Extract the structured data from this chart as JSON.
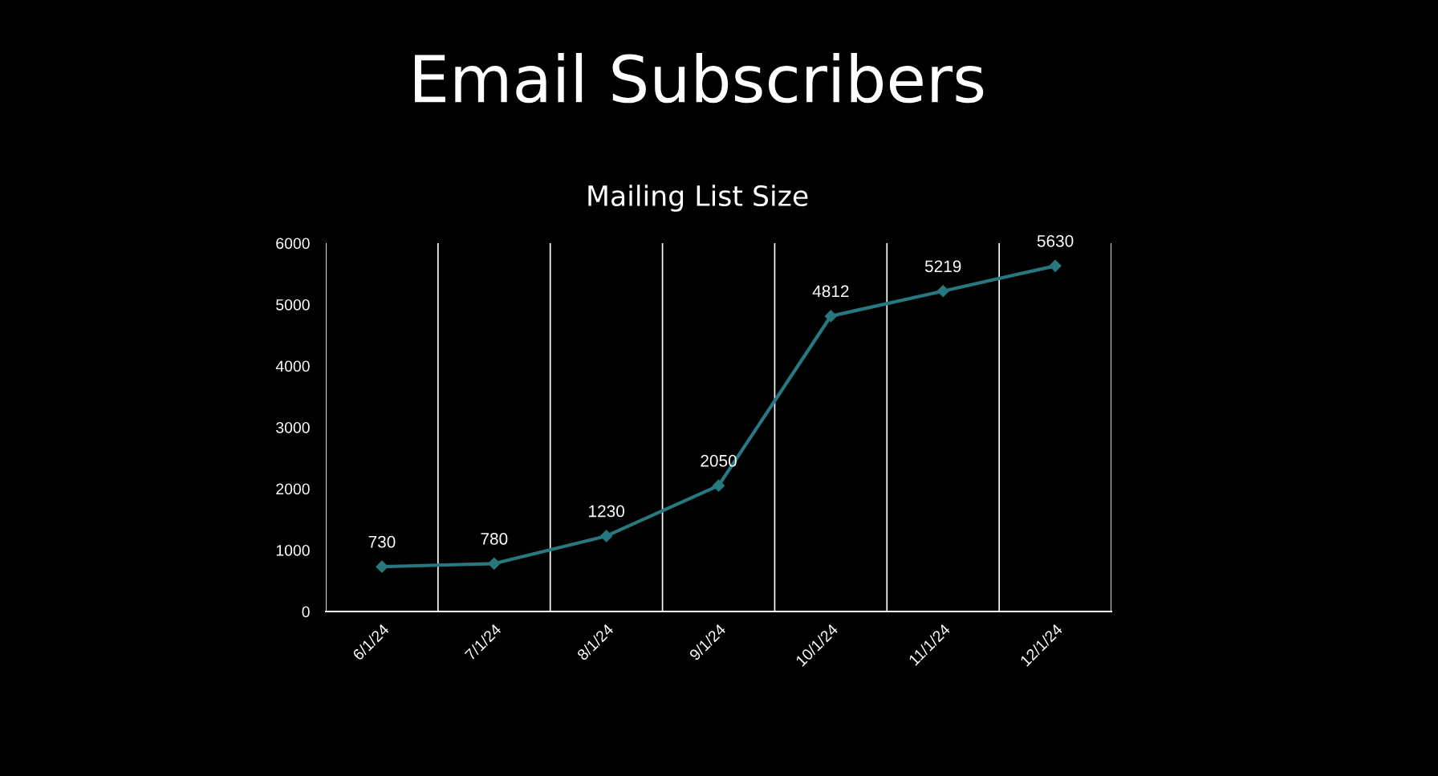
{
  "chart_data": {
    "type": "line",
    "title": "Email Subscribers",
    "subtitle": "Mailing List Size",
    "categories": [
      "6/1/24",
      "7/1/24",
      "8/1/24",
      "9/1/24",
      "10/1/24",
      "11/1/24",
      "12/1/24"
    ],
    "series": [
      {
        "color": "#27797f",
        "values": [
          730,
          780,
          1230,
          2050,
          4812,
          5219,
          5630
        ]
      }
    ],
    "ylim": [
      0,
      6000
    ],
    "yticks": [
      0,
      1000,
      2000,
      3000,
      4000,
      5000,
      6000
    ],
    "grid": "x",
    "marker": "diamond",
    "line_style": "solid",
    "data_labels": true,
    "legend": false
  }
}
